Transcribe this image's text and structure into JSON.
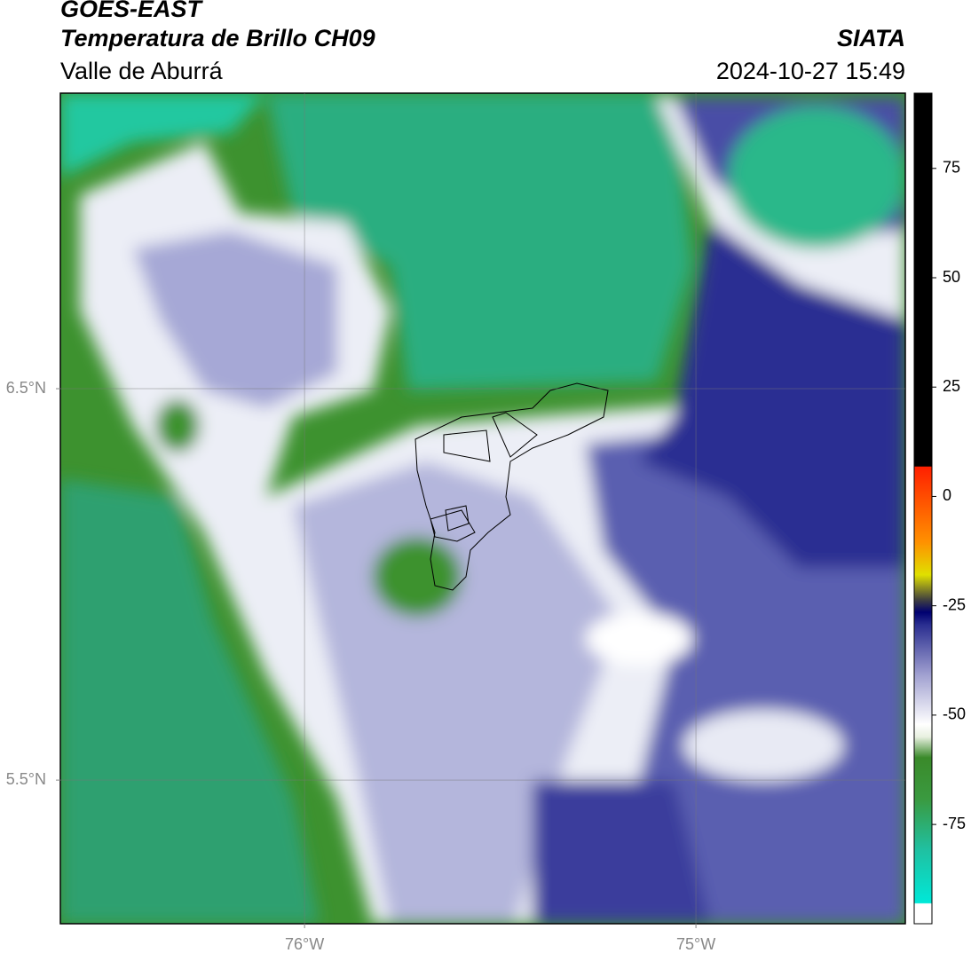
{
  "header": {
    "title": "GOES-EAST",
    "subtitle": "Temperatura de Brillo CH09",
    "region": "Valle de Aburrá",
    "agency": "SIATA",
    "datetime": "2024-10-27 15:49"
  },
  "map": {
    "xlim": [
      -76.624,
      -74.465
    ],
    "ylim": [
      5.133,
      7.255
    ],
    "xticks": [
      {
        "value": -76,
        "label": "76°W"
      },
      {
        "value": -75,
        "label": "75°W"
      }
    ],
    "yticks": [
      {
        "value": 6.5,
        "label": "6.5°N"
      },
      {
        "value": 5.5,
        "label": "5.5°N"
      }
    ]
  },
  "colorbar": {
    "lim": [
      -97.7,
      92.2
    ],
    "ticks": [
      75,
      50,
      25,
      0,
      -25,
      -50,
      -75
    ]
  }
}
